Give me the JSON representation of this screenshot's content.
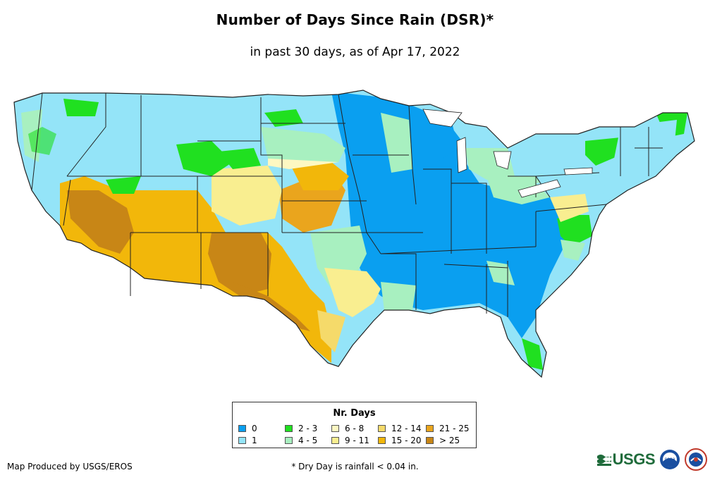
{
  "header": {
    "title": "Number of Days Since Rain (DSR)*",
    "subtitle": "in past 30 days, as of Apr 17, 2022"
  },
  "legend": {
    "title": "Nr. Days",
    "items": [
      {
        "label": "0",
        "color": "#0a9ff0"
      },
      {
        "label": "1",
        "color": "#94e4f8"
      },
      {
        "label": "2 - 3",
        "color": "#20e020"
      },
      {
        "label": "4 - 5",
        "color": "#a8f0c0"
      },
      {
        "label": "6 - 8",
        "color": "#fdf8c2"
      },
      {
        "label": "9 - 11",
        "color": "#f9ee90"
      },
      {
        "label": "12 - 14",
        "color": "#f5da6a"
      },
      {
        "label": "15 - 20",
        "color": "#f2b70a"
      },
      {
        "label": "21 - 25",
        "color": "#eaa51d"
      },
      {
        "label": "> 25",
        "color": "#c88616"
      }
    ]
  },
  "footer": {
    "credit": "Map Produced by USGS/EROS",
    "note": "* Dry Day is rainfall < 0.04 in."
  },
  "logos": {
    "usgs": "USGS",
    "noaa": "noaa"
  }
}
